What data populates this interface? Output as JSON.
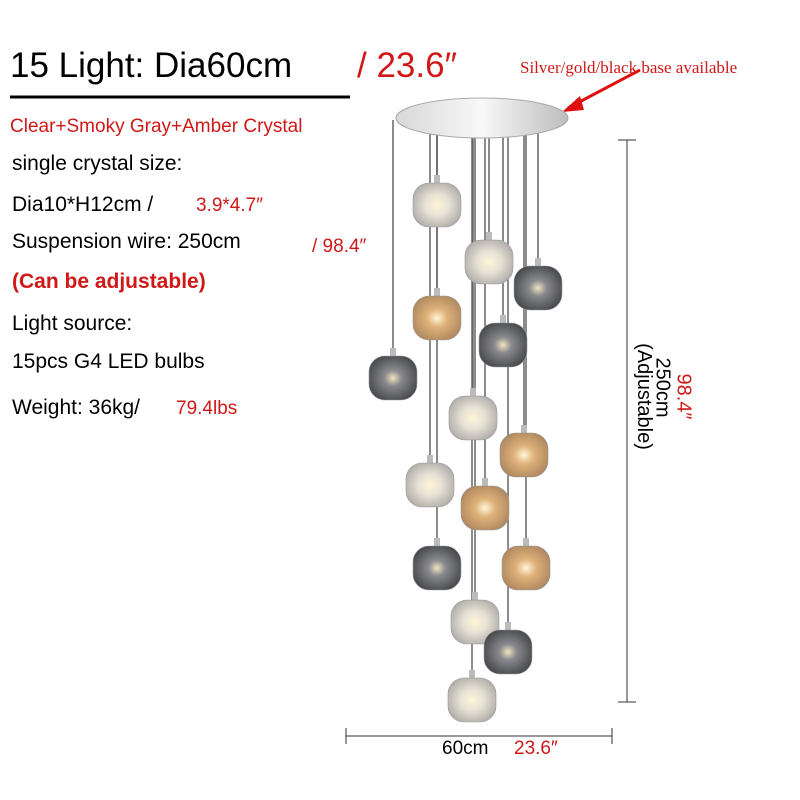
{
  "header": {
    "title": "15 Light: Dia60cm",
    "title_alt": "/ 23.6″",
    "note": "Silver/gold/black base available",
    "material": "Clear+Smoky Gray+Amber Crystal"
  },
  "specs": [
    {
      "text": "single crystal size:"
    },
    {
      "text": "Dia10*H12cm /",
      "alt": "3.9*4.7″"
    },
    {
      "text": "Suspension wire: 250cm",
      "alt": "/ 98.4″"
    },
    {
      "alt": "(Can be adjustable)"
    },
    {
      "text": "Light source:"
    },
    {
      "text": "15pcs G4 LED bulbs"
    },
    {
      "text": "Weight: 36kg/",
      "alt": "79.4lbs"
    }
  ],
  "dimensions": {
    "height_alt": "98.4″",
    "height": "250cm",
    "height_note": "(Adjustable)",
    "width": "60cm",
    "width_alt": "23.6″"
  }
}
